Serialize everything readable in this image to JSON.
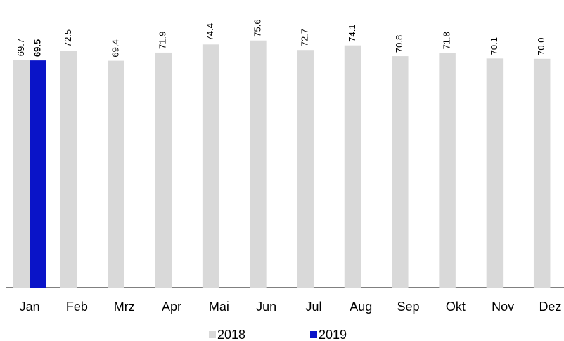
{
  "chart_data": {
    "type": "bar",
    "categories": [
      "Jan",
      "Feb",
      "Mrz",
      "Apr",
      "Mai",
      "Jun",
      "Jul",
      "Aug",
      "Sep",
      "Okt",
      "Nov",
      "Dez"
    ],
    "series": [
      {
        "name": "2018",
        "color": "#d9d9d9",
        "values": [
          69.7,
          72.5,
          69.4,
          71.9,
          74.4,
          75.6,
          72.7,
          74.1,
          70.8,
          71.8,
          70.1,
          70.0
        ],
        "value_labels": [
          "69.7",
          "72.5",
          "69.4",
          "71.9",
          "74.4",
          "75.6",
          "72.7",
          "74.1",
          "70.8",
          "71.8",
          "70.1",
          "70.0"
        ]
      },
      {
        "name": "2019",
        "color": "#0a14c8",
        "values": [
          69.5,
          null,
          null,
          null,
          null,
          null,
          null,
          null,
          null,
          null,
          null,
          null
        ],
        "value_labels": [
          "69.5",
          null,
          null,
          null,
          null,
          null,
          null,
          null,
          null,
          null,
          null,
          null
        ]
      }
    ]
  }
}
